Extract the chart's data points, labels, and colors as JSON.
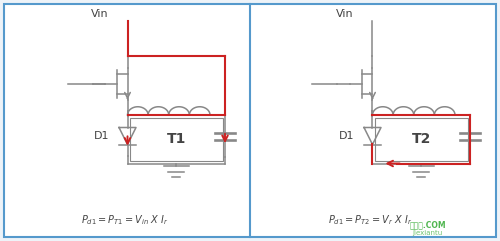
{
  "bg_color": "#eef3f8",
  "border_color": "#5599cc",
  "divider_color": "#5599cc",
  "gray": "#888888",
  "dark_gray": "#444444",
  "red": "#cc2222",
  "label_T1": "T1",
  "label_T2": "T2",
  "label_D1": "D1",
  "label_Vin": "Vin",
  "watermark_cn": "接线图.COM",
  "watermark_en": "jiexiantu",
  "figw": 5.0,
  "figh": 2.41,
  "dpi": 100
}
